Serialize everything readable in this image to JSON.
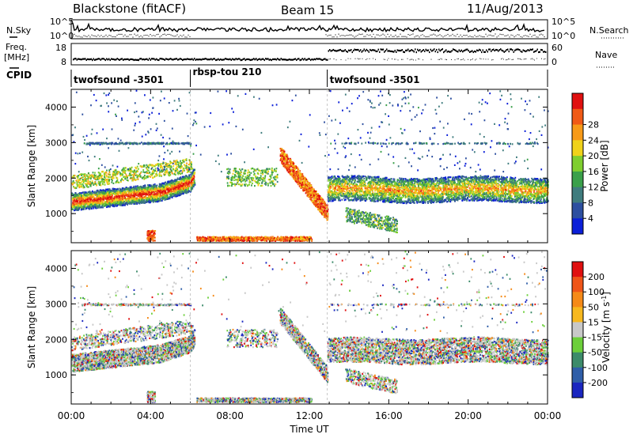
{
  "header": {
    "radar": "Blackstone (fitACF)",
    "beam": "Beam 15",
    "date": "11/Aug/2013"
  },
  "labels": {
    "nsky": "N.Sky",
    "nsearch": "N.Search",
    "freq_line1": "Freq.",
    "freq_line2": "[MHz]",
    "nave": "Nave",
    "cpid": "CPID",
    "noise_ticks": [
      "10^5",
      "10^0"
    ],
    "freq_ticks": [
      "18",
      "8"
    ],
    "nave_ticks": [
      "60",
      "0"
    ]
  },
  "cpid_segments": [
    {
      "name": "twofsound -3501",
      "start_h": 0,
      "end_h": 6
    },
    {
      "name": "rbsp-tou 210",
      "start_h": 6,
      "end_h": 12.9
    },
    {
      "name": "twofsound -3501",
      "start_h": 12.9,
      "end_h": 24
    }
  ],
  "chart_data": [
    {
      "type": "heatmap",
      "title": "",
      "xlabel": "Time UT",
      "ylabel": "Slant Range [km]",
      "xlim_hours": [
        0,
        24
      ],
      "x_ticks": [
        "00:00",
        "04:00",
        "08:00",
        "12:00",
        "16:00",
        "20:00",
        "00:00"
      ],
      "ylim": [
        180,
        4500
      ],
      "y_ticks": [
        1000,
        2000,
        3000,
        4000
      ],
      "colorbar": {
        "label": "Power [dB]",
        "ticks": [
          4,
          8,
          12,
          16,
          20,
          24,
          28
        ],
        "range": [
          0,
          32
        ],
        "colors": [
          "#0b1fd8",
          "#2d4fa0",
          "#3f7c7e",
          "#3aa04a",
          "#7fce2f",
          "#f0d21a",
          "#f79a18",
          "#f05a16",
          "#e01010"
        ]
      }
    },
    {
      "type": "heatmap",
      "title": "",
      "xlabel": "Time UT",
      "ylabel": "Slant Range [km]",
      "xlim_hours": [
        0,
        24
      ],
      "x_ticks": [
        "00:00",
        "04:00",
        "08:00",
        "12:00",
        "16:00",
        "20:00",
        "00:00"
      ],
      "ylim": [
        180,
        4500
      ],
      "y_ticks": [
        1000,
        2000,
        3000,
        4000
      ],
      "colorbar": {
        "label": "Velocity [m s-1]",
        "label_unit": "m s",
        "label_exp": "-1",
        "ticks": [
          200,
          100,
          50,
          15,
          -15,
          -50,
          -100,
          -200
        ],
        "colors": [
          "#1a26c0",
          "#2f5ea8",
          "#3c8b6a",
          "#6ccf3a",
          "#c8c8c8",
          "#f7b81e",
          "#f58a18",
          "#ef5518",
          "#e01010"
        ]
      }
    }
  ]
}
